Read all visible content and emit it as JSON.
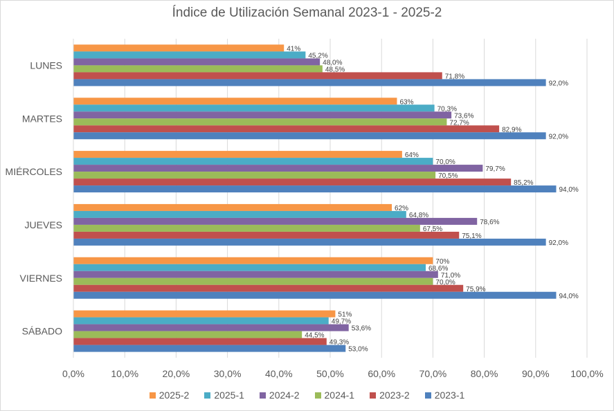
{
  "chart_data": {
    "type": "bar",
    "orientation": "horizontal",
    "title": "Índice de Utilización Semanal 2023-1 - 2025-2",
    "xlabel": "",
    "ylabel": "",
    "xlim": [
      0,
      100
    ],
    "x_ticks": [
      "0,0%",
      "10,0%",
      "20,0%",
      "30,0%",
      "40,0%",
      "50,0%",
      "60,0%",
      "70,0%",
      "80,0%",
      "90,0%",
      "100,0%"
    ],
    "grid": true,
    "legend_position": "bottom",
    "categories": [
      "LUNES",
      "MARTES",
      "MIÉRCOLES",
      "JUEVES",
      "VIERNES",
      "SÁBADO"
    ],
    "series": [
      {
        "name": "2025-2",
        "color": "#F79646",
        "values": [
          41,
          63,
          64,
          62,
          70,
          51
        ],
        "labels": [
          "41%",
          "63%",
          "64%",
          "62%",
          "70%",
          "51%"
        ]
      },
      {
        "name": "2025-1",
        "color": "#4BACC6",
        "values": [
          45.2,
          70.3,
          70.0,
          64.8,
          68.6,
          49.7
        ],
        "labels": [
          "45,2%",
          "70,3%",
          "70,0%",
          "64,8%",
          "68,6%",
          "49,7%"
        ]
      },
      {
        "name": "2024-2",
        "color": "#8064A2",
        "values": [
          48.0,
          73.6,
          79.7,
          78.6,
          71.0,
          53.6
        ],
        "labels": [
          "48,0%",
          "73,6%",
          "79,7%",
          "78,6%",
          "71,0%",
          "53,6%"
        ]
      },
      {
        "name": "2024-1",
        "color": "#9BBB59",
        "values": [
          48.5,
          72.7,
          70.5,
          67.5,
          70.0,
          44.5
        ],
        "labels": [
          "48,5%",
          "72,7%",
          "70,5%",
          "67,5%",
          "70,0%",
          "44,5%"
        ]
      },
      {
        "name": "2023-2",
        "color": "#C0504D",
        "values": [
          71.8,
          82.9,
          85.2,
          75.1,
          75.9,
          49.3
        ],
        "labels": [
          "71,8%",
          "82,9%",
          "85,2%",
          "75,1%",
          "75,9%",
          "49,3%"
        ]
      },
      {
        "name": "2023-1",
        "color": "#4F81BD",
        "values": [
          92.0,
          92.0,
          94.0,
          92.0,
          94.0,
          53.0
        ],
        "labels": [
          "92,0%",
          "92,0%",
          "94,0%",
          "92,0%",
          "94,0%",
          "53,0%"
        ]
      }
    ]
  }
}
